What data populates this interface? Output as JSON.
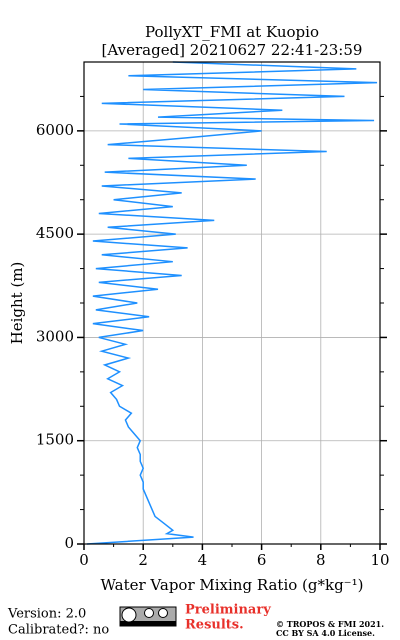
{
  "chart_data": {
    "type": "line",
    "title": "PollyXT_FMI at Kuopio",
    "subtitle": "[Averaged] 20210627 22:41-23:59",
    "x_label": "Water Vapor Mixing Ratio (g*kg⁻¹)",
    "y_label": "Height (m)",
    "y": [
      0,
      100,
      150,
      200,
      300,
      400,
      500,
      600,
      700,
      800,
      900,
      1000,
      1100,
      1200,
      1300,
      1400,
      1500,
      1600,
      1700,
      1800,
      1900,
      2000,
      2100,
      2200,
      2300,
      2400,
      2500,
      2600,
      2700,
      2800,
      2900,
      3000,
      3100,
      3200,
      3300,
      3400,
      3500,
      3600,
      3700,
      3800,
      3900,
      4000,
      4100,
      4200,
      4300,
      4400,
      4500,
      4600,
      4700,
      4800,
      4900,
      5000,
      5100,
      5200,
      5300,
      5400,
      5500,
      5600,
      5700,
      5800,
      5900,
      6000,
      6100,
      6150,
      6200,
      6300,
      6400,
      6500,
      6600,
      6700,
      6800,
      6900,
      7000
    ],
    "series": [
      {
        "color": "#1e90ff",
        "values": [
          0.1,
          3.7,
          2.8,
          3.0,
          2.7,
          2.4,
          2.3,
          2.2,
          2.1,
          2.0,
          2.0,
          1.9,
          2.0,
          1.9,
          1.9,
          1.8,
          1.9,
          1.7,
          1.5,
          1.4,
          1.6,
          1.2,
          1.1,
          0.9,
          1.3,
          0.8,
          1.2,
          0.7,
          1.5,
          0.6,
          1.4,
          0.5,
          2.0,
          0.3,
          2.2,
          0.4,
          1.8,
          0.3,
          2.5,
          0.5,
          3.3,
          0.4,
          3.0,
          0.6,
          3.5,
          0.3,
          3.1,
          0.8,
          4.4,
          0.5,
          3.0,
          1.0,
          3.3,
          0.6,
          5.8,
          0.7,
          5.5,
          1.5,
          8.2,
          0.8,
          3.5,
          6.0,
          1.2,
          9.8,
          2.5,
          6.7,
          0.6,
          8.8,
          2.0,
          9.9,
          1.5,
          9.2,
          3.0
        ]
      }
    ],
    "xlim": [
      0,
      10
    ],
    "xticks": [
      0,
      2,
      4,
      6,
      8,
      10
    ],
    "xminorticks": [
      1,
      3,
      5,
      7,
      9
    ],
    "ylim": [
      0,
      7000
    ],
    "yticks": [
      0,
      1500,
      3000,
      4500,
      6000
    ],
    "yminorticks": [
      500,
      1000,
      2000,
      2500,
      3500,
      4000,
      5000,
      5500,
      6500
    ],
    "grid": true
  },
  "footer": {
    "version": "Version: 2.0",
    "calibrated": "Calibrated?: no",
    "preliminary": [
      "Preliminary",
      "Results."
    ],
    "copyright": [
      "© TROPOS & FMI 2021.",
      "CC BY SA 4.0 License."
    ]
  }
}
